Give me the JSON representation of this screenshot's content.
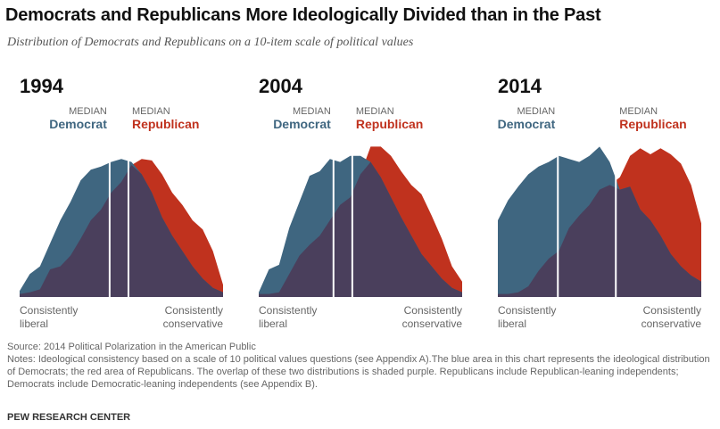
{
  "title": "Democrats and Republicans More Ideologically Divided than in the Past",
  "subtitle": "Distribution of Democrats and Republicans on a 10-item scale of political values",
  "colors": {
    "democrat": "#3f6680",
    "republican": "#c0321e",
    "overlap": "#4a3f5c"
  },
  "labels": {
    "median": "MEDIAN",
    "democrat": "Democrat",
    "republican": "Republican",
    "liberal_line1": "Consistently",
    "liberal_line2": "liberal",
    "conservative_line1": "Consistently",
    "conservative_line2": "conservative"
  },
  "chart_data": [
    {
      "type": "area",
      "title": "1994",
      "x": [
        0,
        1,
        2,
        3,
        4,
        5,
        6,
        7,
        8,
        9,
        10,
        11,
        12,
        13,
        14,
        15,
        16,
        17,
        18,
        19,
        20
      ],
      "series": [
        {
          "name": "Democrat",
          "values": [
            4,
            15,
            20,
            35,
            50,
            62,
            76,
            83,
            85,
            88,
            90,
            88,
            80,
            68,
            52,
            40,
            30,
            20,
            12,
            6,
            3
          ]
        },
        {
          "name": "Republican",
          "values": [
            2,
            3,
            5,
            18,
            20,
            27,
            38,
            50,
            57,
            68,
            75,
            86,
            90,
            89,
            80,
            68,
            60,
            50,
            44,
            30,
            8
          ]
        }
      ],
      "medians": {
        "Democrat": 8.85,
        "Republican": 10.7
      }
    },
    {
      "type": "area",
      "title": "2004",
      "x": [
        0,
        1,
        2,
        3,
        4,
        5,
        6,
        7,
        8,
        9,
        10,
        11,
        12,
        13,
        14,
        15,
        16,
        17,
        18,
        19,
        20
      ],
      "series": [
        {
          "name": "Democrat",
          "values": [
            3,
            18,
            21,
            45,
            62,
            79,
            82,
            90,
            88,
            92,
            92,
            88,
            78,
            65,
            52,
            40,
            28,
            20,
            12,
            6,
            3
          ]
        },
        {
          "name": "Republican",
          "values": [
            2,
            2,
            3,
            15,
            27,
            34,
            40,
            50,
            60,
            65,
            80,
            98,
            98,
            92,
            82,
            73,
            67,
            53,
            38,
            20,
            10
          ]
        }
      ],
      "medians": {
        "Democrat": 7.35,
        "Republican": 9.2
      }
    },
    {
      "type": "area",
      "title": "2014",
      "x": [
        0,
        1,
        2,
        3,
        4,
        5,
        6,
        7,
        8,
        9,
        10,
        11,
        12,
        13,
        14,
        15,
        16,
        17,
        18,
        19,
        20
      ],
      "series": [
        {
          "name": "Democrat",
          "values": [
            50,
            63,
            72,
            80,
            85,
            88,
            92,
            90,
            88,
            92,
            98,
            88,
            70,
            72,
            57,
            50,
            40,
            28,
            20,
            14,
            10
          ]
        },
        {
          "name": "Republican",
          "values": [
            2,
            2,
            3,
            7,
            17,
            25,
            30,
            45,
            53,
            60,
            70,
            73,
            78,
            92,
            97,
            93,
            97,
            93,
            87,
            73,
            48
          ]
        }
      ],
      "medians": {
        "Democrat": 5.9,
        "Republican": 11.6
      }
    }
  ],
  "source": "Source: 2014 Political Polarization in the American Public",
  "notes": "Notes: Ideological consistency based on a scale of 10 political values questions (see Appendix A).The blue area in this chart represents the ideological distribution of Democrats; the red area of Republicans. The overlap of these two distributions is shaded purple. Republicans include Republican-leaning independents; Democrats include Democratic-leaning independents (see Appendix B).",
  "brand": "PEW RESEARCH CENTER"
}
